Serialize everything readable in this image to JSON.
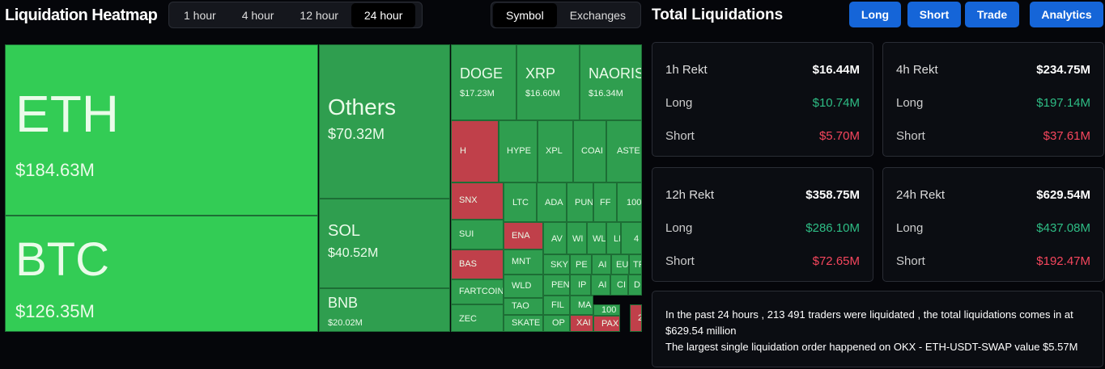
{
  "header": {
    "title": "Liquidation Heatmap",
    "time_tabs": [
      "1 hour",
      "4 hour",
      "12 hour",
      "24 hour"
    ],
    "view_tabs": [
      "Symbol",
      "Exchanges"
    ]
  },
  "heatmap": {
    "tiles": [
      {
        "label": "ETH",
        "value": "$184.63M",
        "color": "#33cc55"
      },
      {
        "label": "BTC",
        "value": "$126.35M",
        "color": "#33cc55"
      },
      {
        "label": "Others",
        "value": "$70.32M",
        "color": "#2f9e4f"
      },
      {
        "label": "SOL",
        "value": "$40.52M",
        "color": "#2f9e4f"
      },
      {
        "label": "BNB",
        "value": "$20.02M",
        "color": "#2f9e4f"
      },
      {
        "label": "DOGE",
        "value": "$17.23M",
        "color": "#2f9e4f"
      },
      {
        "label": "XRP",
        "value": "$16.60M",
        "color": "#2f9e4f"
      },
      {
        "label": "NAORIS",
        "value": "$16.34M",
        "color": "#2f9e4f"
      },
      {
        "label": "H",
        "color": "#c0404a"
      },
      {
        "label": "HYPE",
        "color": "#2f9e4f"
      },
      {
        "label": "XPL",
        "color": "#2f9e4f"
      },
      {
        "label": "COAI",
        "color": "#2f9e4f"
      },
      {
        "label": "ASTE",
        "color": "#2f9e4f"
      },
      {
        "label": "SNX",
        "color": "#c0404a"
      },
      {
        "label": "SUI",
        "color": "#2f9e4f"
      },
      {
        "label": "BAS",
        "color": "#c0404a"
      },
      {
        "label": "FARTCOIN",
        "color": "#2f9e4f"
      },
      {
        "label": "ZEC",
        "color": "#2f9e4f"
      },
      {
        "label": "LTC",
        "color": "#2f9e4f"
      },
      {
        "label": "ADA",
        "color": "#2f9e4f"
      },
      {
        "label": "PUN",
        "color": "#2f9e4f"
      },
      {
        "label": "FF",
        "color": "#2f9e4f"
      },
      {
        "label": "100",
        "color": "#2f9e4f"
      },
      {
        "label": "ENA",
        "color": "#c0404a"
      },
      {
        "label": "MNT",
        "color": "#2f9e4f"
      },
      {
        "label": "WLD",
        "color": "#2f9e4f"
      },
      {
        "label": "TAO",
        "color": "#2f9e4f"
      },
      {
        "label": "SKATE",
        "color": "#2f9e4f"
      },
      {
        "label": "AV",
        "color": "#2f9e4f"
      },
      {
        "label": "WI",
        "color": "#2f9e4f"
      },
      {
        "label": "WL",
        "color": "#2f9e4f"
      },
      {
        "label": "LI",
        "color": "#2f9e4f"
      },
      {
        "label": "4",
        "color": "#2f9e4f"
      },
      {
        "label": "SKY",
        "color": "#2f9e4f"
      },
      {
        "label": "PE",
        "color": "#2f9e4f"
      },
      {
        "label": "AI",
        "color": "#2f9e4f"
      },
      {
        "label": "EU",
        "color": "#2f9e4f"
      },
      {
        "label": "TF",
        "color": "#2f9e4f"
      },
      {
        "label": "PEN",
        "color": "#2f9e4f"
      },
      {
        "label": "IP",
        "color": "#2f9e4f"
      },
      {
        "label": "AI",
        "color": "#2f9e4f"
      },
      {
        "label": "CI",
        "color": "#2f9e4f"
      },
      {
        "label": "D",
        "color": "#2f9e4f"
      },
      {
        "label": "FIL",
        "color": "#2f9e4f"
      },
      {
        "label": "MA",
        "color": "#2f9e4f"
      },
      {
        "label": "100",
        "color": "#2f9e4f"
      },
      {
        "label": "OP",
        "color": "#2f9e4f"
      },
      {
        "label": "XAI",
        "color": "#c0404a"
      },
      {
        "label": "PAX",
        "color": "#c0404a"
      },
      {
        "label": "2",
        "color": "#c0404a"
      }
    ]
  },
  "panel": {
    "title": "Total Liquidations",
    "buttons": [
      "Long",
      "Short",
      "Trade",
      "Analytics"
    ],
    "cards": [
      {
        "title": "1h Rekt",
        "total": "$16.44M",
        "long_label": "Long",
        "long": "$10.74M",
        "short_label": "Short",
        "short": "$5.70M"
      },
      {
        "title": "4h Rekt",
        "total": "$234.75M",
        "long_label": "Long",
        "long": "$197.14M",
        "short_label": "Short",
        "short": "$37.61M"
      },
      {
        "title": "12h Rekt",
        "total": "$358.75M",
        "long_label": "Long",
        "long": "$286.10M",
        "short_label": "Short",
        "short": "$72.65M"
      },
      {
        "title": "24h Rekt",
        "total": "$629.54M",
        "long_label": "Long",
        "long": "$437.08M",
        "short_label": "Short",
        "short": "$192.47M"
      }
    ],
    "summary": [
      "In the past 24 hours , 213 491 traders were liquidated , the total liquidations comes in at $629.54 million",
      "The largest single liquidation order happened on OKX - ETH-USDT-SWAP value $5.57M"
    ]
  }
}
